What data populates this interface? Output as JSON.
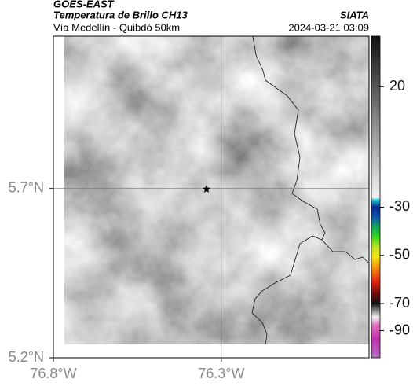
{
  "header": {
    "title": "GOES-EAST",
    "subtitle": "Temperatura de Brillo CH13",
    "source": "SIATA",
    "route": "Vía Medellín - Quibdó 50km",
    "timestamp": "2024-03-21 03:09"
  },
  "map": {
    "lon_range": [
      -76.8,
      -75.86
    ],
    "lat_range": [
      5.2,
      6.15
    ],
    "lon_ticks": [
      {
        "value": -76.8,
        "label": "76.8°W"
      },
      {
        "value": -76.3,
        "label": "76.3°W"
      }
    ],
    "lat_ticks": [
      {
        "value": 5.2,
        "label": "5.2°N"
      },
      {
        "value": 5.7,
        "label": "5.7°N"
      }
    ],
    "grid": true
  },
  "colorbar": {
    "scale_breaks": [
      -110,
      -70,
      41
    ],
    "ticks": [
      20,
      -30,
      -50,
      -70,
      -90
    ],
    "colormap": [
      {
        "value": 41,
        "color": "#111111"
      },
      {
        "value": -26,
        "color": "#f2f2f2"
      },
      {
        "value": -27,
        "color": "#19c9d6"
      },
      {
        "value": -30,
        "color": "#0c2a8c"
      },
      {
        "value": -34,
        "color": "#1050b0"
      },
      {
        "value": -38,
        "color": "#12a060"
      },
      {
        "value": -42,
        "color": "#2fd020"
      },
      {
        "value": -47,
        "color": "#c8e020"
      },
      {
        "value": -51,
        "color": "#f5e010"
      },
      {
        "value": -56,
        "color": "#f08010"
      },
      {
        "value": -61,
        "color": "#e02010"
      },
      {
        "value": -66,
        "color": "#701010"
      },
      {
        "value": -70,
        "color": "#101010"
      },
      {
        "value": -75,
        "color": "#808080"
      },
      {
        "value": -80,
        "color": "#f0f0f0"
      },
      {
        "value": -86,
        "color": "#e070c0"
      },
      {
        "value": -96,
        "color": "#c030b0"
      },
      {
        "value": -110,
        "color": "#b070c0"
      }
    ]
  }
}
